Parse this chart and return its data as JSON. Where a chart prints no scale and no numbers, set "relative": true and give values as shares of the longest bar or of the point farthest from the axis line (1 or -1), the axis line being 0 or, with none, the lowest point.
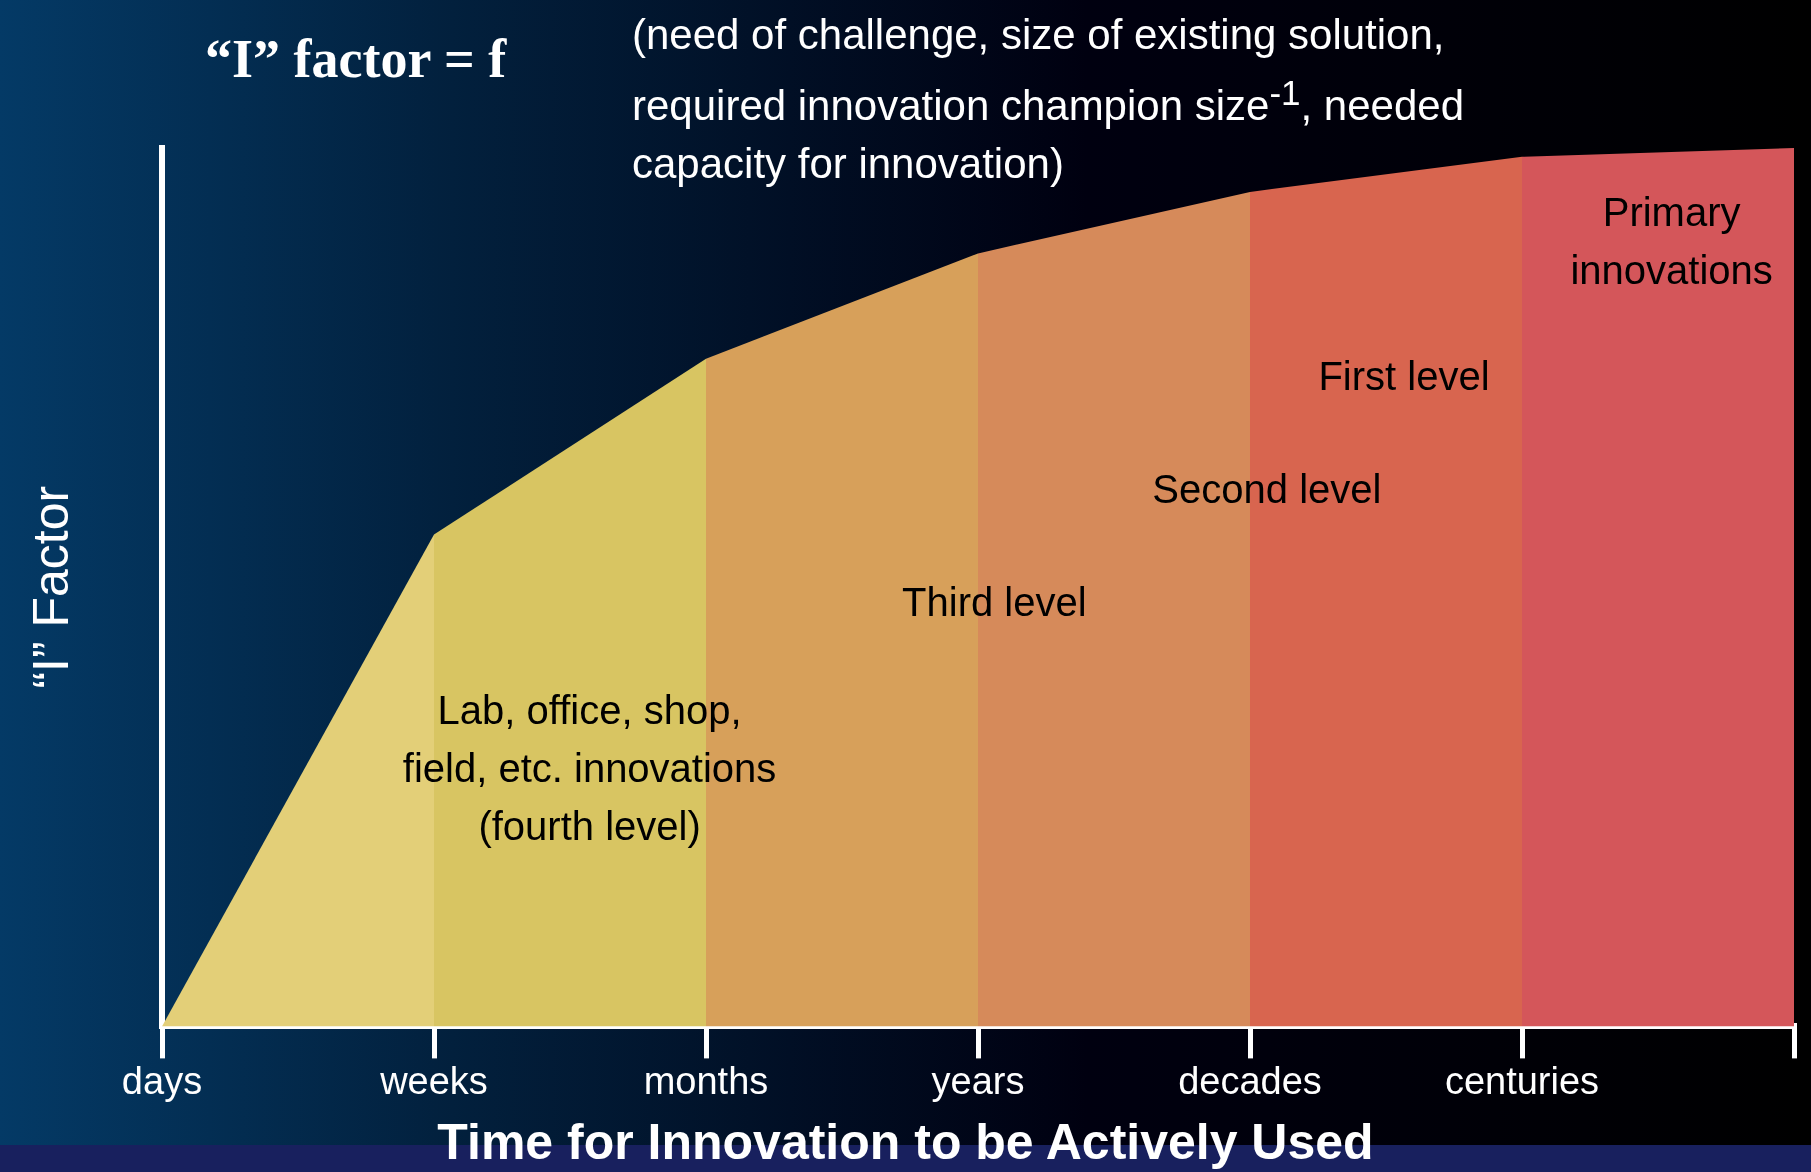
{
  "chart_data": {
    "type": "area",
    "relative": true,
    "title": "“I” factor = f",
    "subtitle": "(need of challenge, size of existing solution, required innovation champion size$^{-1}$, needed capacity for innovation)",
    "xlabel": "Time for Innovation to be Actively Used",
    "ylabel": "“I” Factor",
    "categories": [
      "days",
      "weeks",
      "months",
      "years",
      "decades",
      "centuries",
      null
    ],
    "series": [
      {
        "color": "#e3cf78",
        "values": [
          0,
          0.56,
          null,
          null,
          null,
          null,
          null
        ]
      },
      {
        "color": "#d8c562",
        "values": [
          null,
          0.56,
          0.76,
          null,
          null,
          null,
          null
        ]
      },
      {
        "color": "#d7a05a",
        "values": [
          null,
          null,
          0.76,
          0.88,
          null,
          null,
          null
        ]
      },
      {
        "color": "#d68a5a",
        "values": [
          null,
          null,
          null,
          0.88,
          0.95,
          null,
          null
        ]
      },
      {
        "color": "#d8654f",
        "values": [
          null,
          null,
          null,
          null,
          0.95,
          0.99,
          null
        ]
      },
      {
        "color": "#d4565a",
        "values": [
          null,
          null,
          null,
          null,
          null,
          0.99,
          1
        ]
      }
    ],
    "annotations": [
      "Lab, office, shop,\nfield, etc. innovations\n(fourth level)",
      "Third level",
      "Second level",
      "First level",
      "Primary\ninnovations"
    ],
    "legend": false
  }
}
